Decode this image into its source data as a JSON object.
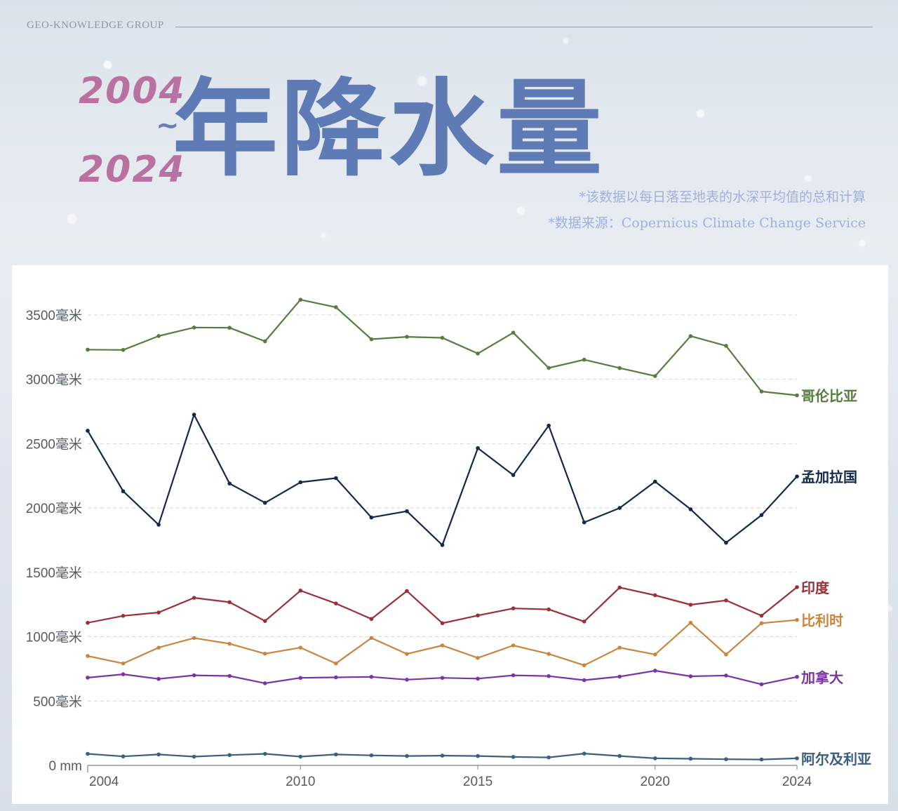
{
  "header": {
    "brand": "GEO-KNOWLEDGE GROUP",
    "year_start": "2004",
    "tilde": "~",
    "year_end": "2024",
    "title": "年降水量",
    "note_method": "*该数据以每日落至地表的水深平均值的总和计算",
    "note_source": "*数据来源：Copernicus Climate Change Service"
  },
  "colors": {
    "background": "#dfe6ed",
    "title": "#5e7bb5",
    "years": "#b9729f",
    "notes": "#9fb0dd",
    "grid": "#d4d7db"
  },
  "chart_data": {
    "type": "line",
    "x": [
      2004,
      2005,
      2006,
      2007,
      2008,
      2009,
      2010,
      2011,
      2012,
      2013,
      2014,
      2015,
      2016,
      2017,
      2018,
      2019,
      2020,
      2021,
      2022,
      2023,
      2024
    ],
    "x_ticks": [
      2004,
      2010,
      2015,
      2020,
      2024
    ],
    "x_tick_labels": [
      "2004",
      "2010",
      "2015",
      "2020",
      "2024"
    ],
    "y_ticks": [
      0,
      500,
      1000,
      1500,
      2000,
      2500,
      3000,
      3500
    ],
    "y_tick_labels": [
      "0 mm",
      "500毫米",
      "1000毫米",
      "1500毫米",
      "2000毫米",
      "2500毫米",
      "3000毫米",
      "3500毫米"
    ],
    "ylim": [
      0,
      3750
    ],
    "grid": "horizontal-dashed",
    "legend": "labels at right end of each line",
    "series": [
      {
        "name": "哥伦比亚",
        "color": "#567d3f",
        "values": [
          3230,
          3228,
          3336,
          3402,
          3400,
          3295,
          3618,
          3560,
          3311,
          3330,
          3322,
          3200,
          3362,
          3088,
          3152,
          3087,
          3025,
          3335,
          3260,
          2905,
          2875
        ]
      },
      {
        "name": "孟加拉国",
        "color": "#13294b",
        "values": [
          2600,
          2130,
          1870,
          2725,
          2190,
          2040,
          2200,
          2232,
          1926,
          1975,
          1712,
          2465,
          2256,
          2640,
          1888,
          2000,
          2205,
          1990,
          1730,
          1945,
          2245
        ]
      },
      {
        "name": "印度",
        "color": "#9a2f38",
        "values": [
          1108,
          1162,
          1188,
          1302,
          1268,
          1122,
          1358,
          1258,
          1138,
          1355,
          1105,
          1165,
          1220,
          1212,
          1118,
          1382,
          1322,
          1248,
          1282,
          1163,
          1385
        ]
      },
      {
        "name": "比利时",
        "color": "#c9853e",
        "values": [
          850,
          792,
          915,
          990,
          945,
          868,
          915,
          792,
          990,
          866,
          932,
          835,
          932,
          866,
          778,
          915,
          862,
          1108,
          862,
          1105,
          1130
        ]
      },
      {
        "name": "加拿大",
        "color": "#7b34a3",
        "values": [
          682,
          708,
          672,
          700,
          695,
          638,
          680,
          684,
          688,
          666,
          680,
          674,
          700,
          694,
          662,
          690,
          736,
          692,
          698,
          630,
          688
        ]
      },
      {
        "name": "阿尔及利亚",
        "color": "#3b5f80",
        "values": [
          90,
          70,
          85,
          68,
          80,
          90,
          68,
          85,
          78,
          73,
          76,
          73,
          66,
          62,
          92,
          73,
          55,
          52,
          48,
          46,
          55
        ]
      }
    ]
  }
}
